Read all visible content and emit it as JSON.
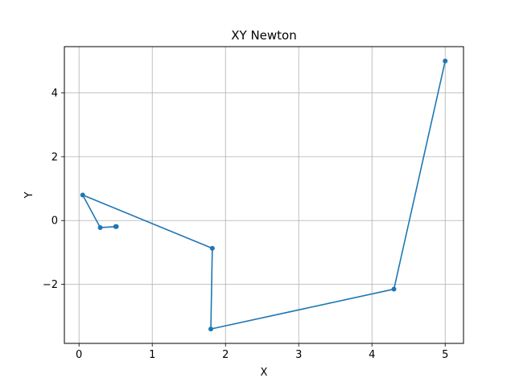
{
  "chart_data": {
    "type": "line",
    "title": "XY Newton",
    "xlabel": "X",
    "ylabel": "Y",
    "xlim": [
      -0.2,
      5.25
    ],
    "ylim": [
      -3.85,
      5.45
    ],
    "xticks": [
      0,
      1,
      2,
      3,
      4,
      5
    ],
    "xtick_labels": [
      "0",
      "1",
      "2",
      "3",
      "4",
      "5"
    ],
    "yticks": [
      -2,
      0,
      2,
      4
    ],
    "ytick_labels": [
      "−2",
      "0",
      "2",
      "4"
    ],
    "grid": true,
    "series": [
      {
        "color": "#1f77b4",
        "marker": "circle",
        "x": [
          5.0,
          4.3,
          1.8,
          1.82,
          0.05,
          0.29,
          0.51,
          0.5
        ],
        "y": [
          5.0,
          -2.15,
          -3.4,
          -0.87,
          0.8,
          -0.22,
          -0.19,
          -0.19
        ]
      }
    ]
  }
}
